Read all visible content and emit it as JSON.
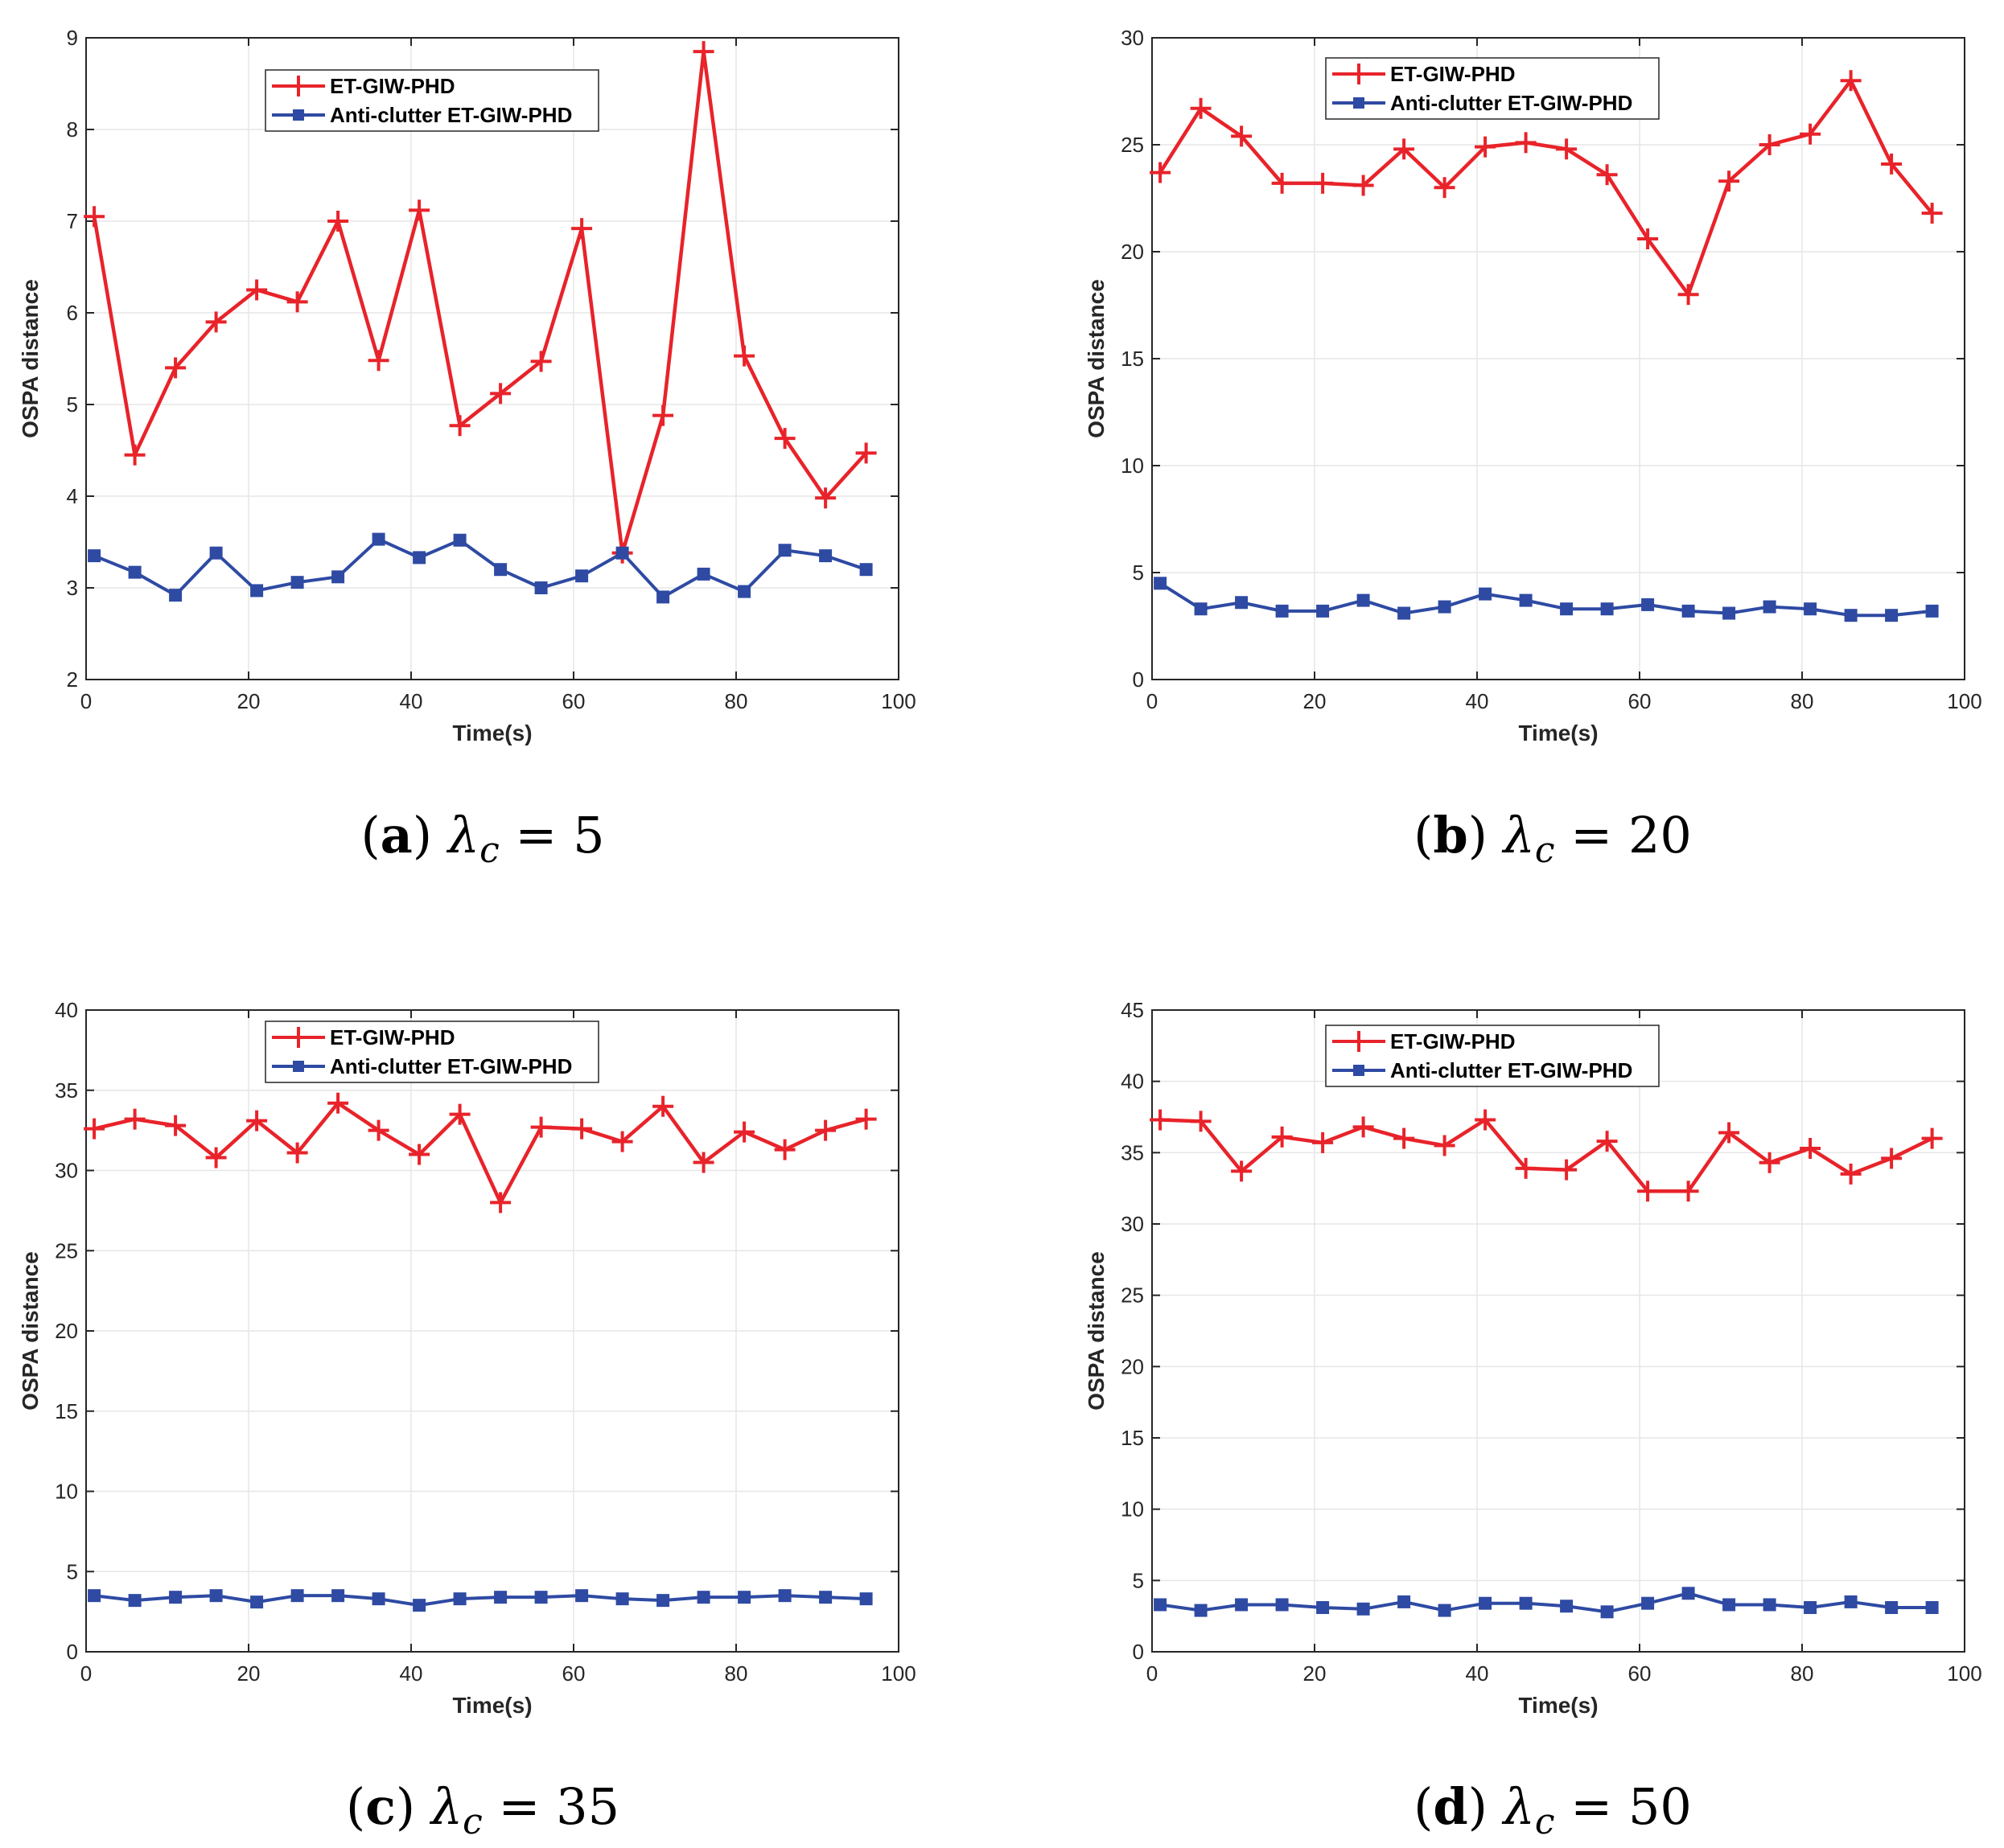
{
  "colors": {
    "series1": "#e8232a",
    "series2": "#2e4aa3",
    "axis": "#262626",
    "grid": "#e6e6e6"
  },
  "chart_data": [
    {
      "type": "line",
      "caption": {
        "label": "(a)",
        "math": "λ",
        "sub": "c",
        "rest": " = 5"
      },
      "xlabel": "Time(s)",
      "ylabel": "OSPA distance",
      "xlim": [
        0,
        100
      ],
      "ylim": [
        2,
        9
      ],
      "xticks": [
        "0",
        "20",
        "40",
        "60",
        "80",
        "100"
      ],
      "yticks": [
        "2",
        "3",
        "4",
        "5",
        "6",
        "7",
        "8",
        "9"
      ],
      "grid": true,
      "legend_position": "top-center",
      "x": [
        1,
        6,
        11,
        16,
        21,
        26,
        31,
        36,
        41,
        46,
        51,
        56,
        61,
        66,
        71,
        76,
        81,
        86,
        91,
        96
      ],
      "series": [
        {
          "name": "ET-GIW-PHD",
          "marker": "plus",
          "values": [
            7.05,
            4.45,
            5.4,
            5.9,
            6.25,
            6.12,
            7.0,
            5.48,
            7.12,
            4.77,
            5.12,
            5.47,
            6.92,
            3.38,
            4.88,
            8.85,
            5.53,
            4.63,
            3.98,
            4.47
          ]
        },
        {
          "name": "Anti-clutter ET-GIW-PHD",
          "marker": "square",
          "values": [
            3.35,
            3.17,
            2.92,
            3.38,
            2.97,
            3.06,
            3.12,
            3.53,
            3.33,
            3.52,
            3.2,
            3.0,
            3.13,
            3.38,
            2.9,
            3.15,
            2.96,
            3.41,
            3.35,
            3.2
          ]
        }
      ]
    },
    {
      "type": "line",
      "caption": {
        "label": "(b)",
        "math": "λ",
        "sub": "c",
        "rest": " = 20"
      },
      "xlabel": "Time(s)",
      "ylabel": "OSPA distance",
      "xlim": [
        0,
        100
      ],
      "ylim": [
        0,
        30
      ],
      "xticks": [
        "0",
        "20",
        "40",
        "60",
        "80",
        "100"
      ],
      "yticks": [
        "0",
        "5",
        "10",
        "15",
        "20",
        "25",
        "30"
      ],
      "grid": true,
      "legend_position": "top-center",
      "x": [
        1,
        6,
        11,
        16,
        21,
        26,
        31,
        36,
        41,
        46,
        51,
        56,
        61,
        66,
        71,
        76,
        81,
        86,
        91,
        96
      ],
      "series": [
        {
          "name": "ET-GIW-PHD",
          "marker": "plus",
          "values": [
            23.7,
            26.7,
            25.4,
            23.2,
            23.2,
            23.1,
            24.8,
            23.0,
            24.9,
            25.1,
            24.8,
            23.6,
            20.6,
            18.0,
            23.3,
            25.0,
            25.5,
            28.0,
            24.1,
            21.8
          ]
        },
        {
          "name": "Anti-clutter ET-GIW-PHD",
          "marker": "square",
          "values": [
            4.5,
            3.3,
            3.6,
            3.2,
            3.2,
            3.7,
            3.1,
            3.4,
            4.0,
            3.7,
            3.3,
            3.3,
            3.5,
            3.2,
            3.1,
            3.4,
            3.3,
            3.0,
            3.0,
            3.2
          ]
        }
      ]
    },
    {
      "type": "line",
      "caption": {
        "label": "(c)",
        "math": "λ",
        "sub": "c",
        "rest": " = 35"
      },
      "xlabel": "Time(s)",
      "ylabel": "OSPA distance",
      "xlim": [
        0,
        100
      ],
      "ylim": [
        0,
        40
      ],
      "xticks": [
        "0",
        "20",
        "40",
        "60",
        "80",
        "100"
      ],
      "yticks": [
        "0",
        "5",
        "10",
        "15",
        "20",
        "25",
        "30",
        "35",
        "40"
      ],
      "grid": true,
      "legend_position": "top-center",
      "x": [
        1,
        6,
        11,
        16,
        21,
        26,
        31,
        36,
        41,
        46,
        51,
        56,
        61,
        66,
        71,
        76,
        81,
        86,
        91,
        96
      ],
      "series": [
        {
          "name": "ET-GIW-PHD",
          "marker": "plus",
          "values": [
            32.6,
            33.2,
            32.8,
            30.8,
            33.1,
            31.1,
            34.2,
            32.5,
            31.0,
            33.5,
            28.0,
            32.7,
            32.6,
            31.8,
            34.0,
            30.5,
            32.4,
            31.3,
            32.5,
            33.2
          ]
        },
        {
          "name": "Anti-clutter ET-GIW-PHD",
          "marker": "square",
          "values": [
            3.5,
            3.2,
            3.4,
            3.5,
            3.1,
            3.5,
            3.5,
            3.3,
            2.9,
            3.3,
            3.4,
            3.4,
            3.5,
            3.3,
            3.2,
            3.4,
            3.4,
            3.5,
            3.4,
            3.3
          ]
        }
      ]
    },
    {
      "type": "line",
      "caption": {
        "label": "(d)",
        "math": "λ",
        "sub": "c",
        "rest": " = 50"
      },
      "xlabel": "Time(s)",
      "ylabel": "OSPA distance",
      "xlim": [
        0,
        100
      ],
      "ylim": [
        0,
        45
      ],
      "xticks": [
        "0",
        "20",
        "40",
        "60",
        "80",
        "100"
      ],
      "yticks": [
        "0",
        "5",
        "10",
        "15",
        "20",
        "25",
        "30",
        "35",
        "40",
        "45"
      ],
      "grid": true,
      "legend_position": "top-center",
      "x": [
        1,
        6,
        11,
        16,
        21,
        26,
        31,
        36,
        41,
        46,
        51,
        56,
        61,
        66,
        71,
        76,
        81,
        86,
        91,
        96
      ],
      "series": [
        {
          "name": "ET-GIW-PHD",
          "marker": "plus",
          "values": [
            37.3,
            37.2,
            33.7,
            36.1,
            35.7,
            36.8,
            36.0,
            35.5,
            37.3,
            33.9,
            33.8,
            35.8,
            32.3,
            32.3,
            36.4,
            34.3,
            35.3,
            33.5,
            34.6,
            36.0
          ]
        },
        {
          "name": "Anti-clutter ET-GIW-PHD",
          "marker": "square",
          "values": [
            3.3,
            2.9,
            3.3,
            3.3,
            3.1,
            3.0,
            3.5,
            2.9,
            3.4,
            3.4,
            3.2,
            2.8,
            3.4,
            4.1,
            3.3,
            3.3,
            3.1,
            3.5,
            3.1,
            3.1
          ]
        }
      ]
    }
  ]
}
